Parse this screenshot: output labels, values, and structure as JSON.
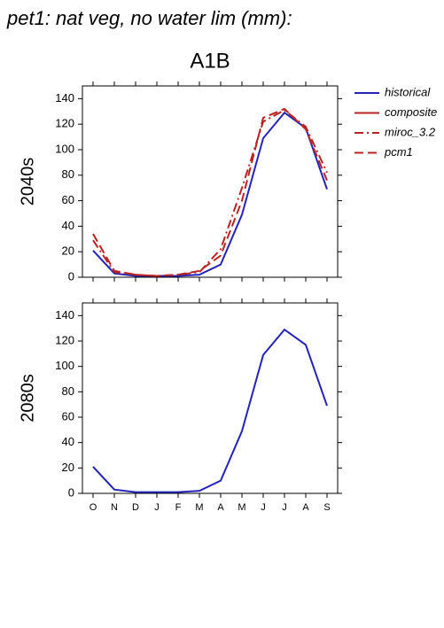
{
  "title": "pet1: nat veg, no water lim (mm):",
  "chart_data": [
    {
      "type": "line",
      "title": "A1B",
      "ylabel": "2040s",
      "ylim": [
        0,
        150
      ],
      "yticks": [
        0,
        20,
        40,
        60,
        80,
        100,
        120,
        140
      ],
      "legend": "outside right",
      "series": [
        {
          "name": "historical",
          "color": "#2323b8",
          "dash": "solid",
          "values": [
            21,
            3,
            1,
            1,
            1,
            2,
            10,
            49,
            109,
            129,
            117,
            69
          ]
        },
        {
          "name": "composite",
          "color": "#b82323",
          "dash": "solid",
          "values": [
            null,
            null,
            null,
            null,
            null,
            null,
            null,
            null,
            null,
            null,
            null,
            null
          ]
        },
        {
          "name": "miroc_3.2",
          "color": "#b82323",
          "dash": "dashdot",
          "values": [
            29,
            4,
            2,
            1,
            2,
            4,
            22,
            70,
            122,
            131,
            118,
            82
          ]
        },
        {
          "name": "pcm1",
          "color": "#b82323",
          "dash": "dash",
          "values": [
            34,
            5,
            2,
            1,
            2,
            5,
            17,
            60,
            125,
            132,
            116,
            76
          ]
        }
      ]
    },
    {
      "type": "line",
      "ylabel": "2080s",
      "categories": [
        "O",
        "N",
        "D",
        "J",
        "F",
        "M",
        "A",
        "M",
        "J",
        "J",
        "A",
        "S"
      ],
      "ylim": [
        0,
        150
      ],
      "yticks": [
        0,
        20,
        40,
        60,
        80,
        100,
        120,
        140
      ],
      "series": [
        {
          "name": "historical",
          "color": "#2323b8",
          "dash": "solid",
          "values": [
            21,
            3,
            1,
            1,
            1,
            2,
            10,
            49,
            109,
            129,
            117,
            69
          ]
        }
      ]
    }
  ]
}
